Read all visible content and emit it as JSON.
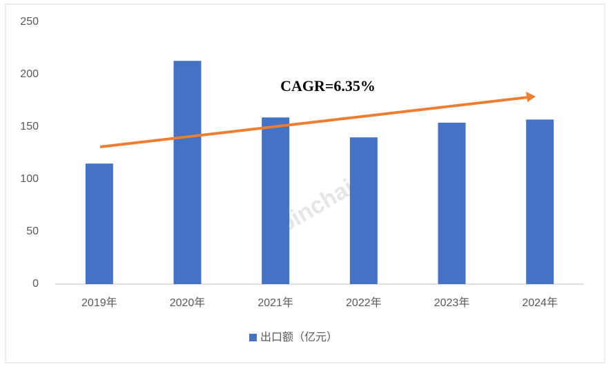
{
  "chart_data": {
    "type": "bar",
    "categories": [
      "2019年",
      "2020年",
      "2021年",
      "2022年",
      "2023年",
      "2024年"
    ],
    "series": [
      {
        "name": "出口额（亿元）",
        "color": "#4472c4",
        "values": [
          115,
          213,
          159,
          140,
          154,
          157
        ]
      }
    ],
    "ylim": [
      0,
      250
    ],
    "yticks": [
      0,
      50,
      100,
      150,
      200,
      250
    ],
    "grid": false,
    "annotation": "CAGR=6.35%",
    "watermark": "Joinchain",
    "legend": "bottom"
  }
}
